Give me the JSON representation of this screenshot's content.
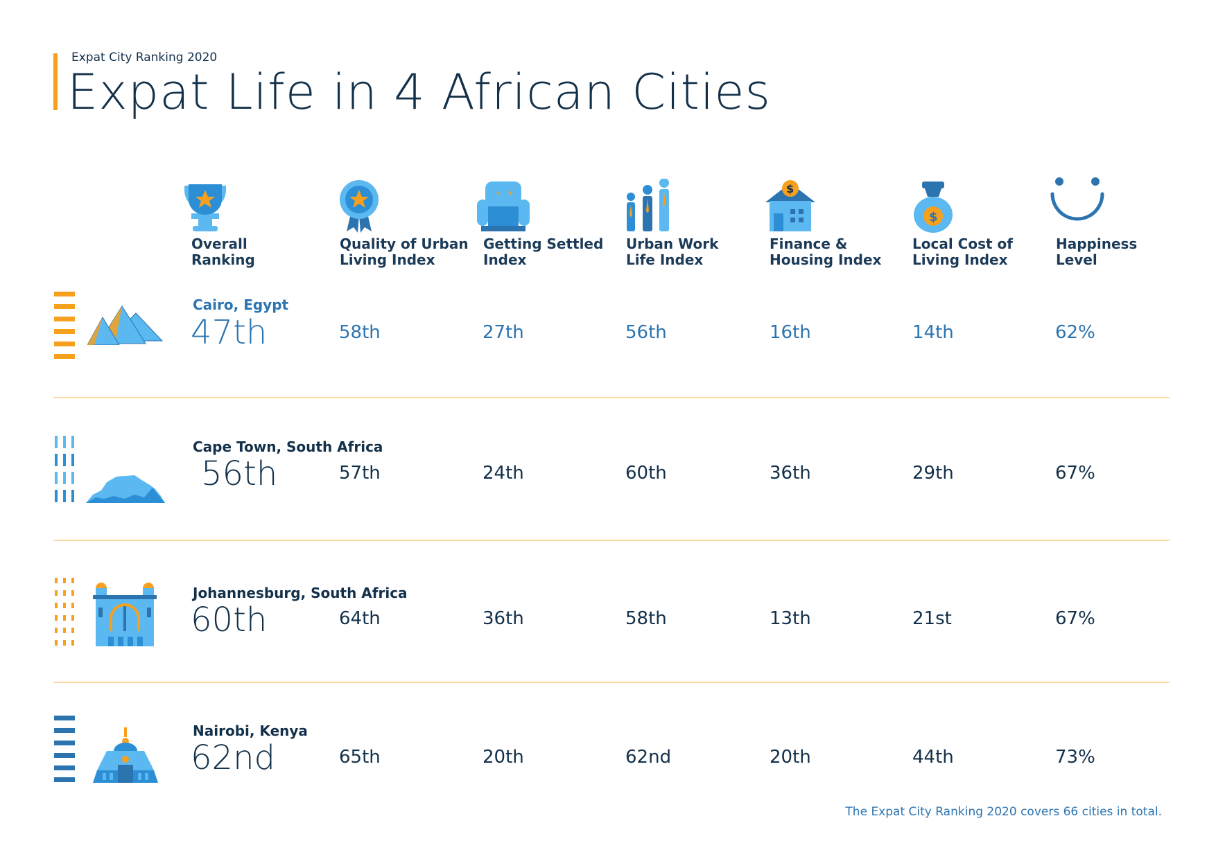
{
  "header": {
    "subtitle": "Expat City Ranking 2020",
    "title": "Expat Life in 4 African Cities"
  },
  "columns": [
    {
      "icon": "trophy-icon",
      "line1": "Overall",
      "line2": "Ranking"
    },
    {
      "icon": "award-badge-icon",
      "line1": "Quality of Urban",
      "line2": "Living Index"
    },
    {
      "icon": "armchair-icon",
      "line1": "Getting Settled",
      "line2": "Index"
    },
    {
      "icon": "workers-icon",
      "line1": "Urban Work",
      "line2": "Life Index"
    },
    {
      "icon": "house-money-icon",
      "line1": "Finance &",
      "line2": "Housing Index"
    },
    {
      "icon": "money-bag-icon",
      "line1": "Local Cost of",
      "line2": "Living Index"
    },
    {
      "icon": "smiley-icon",
      "line1": "Happiness",
      "line2": "Level"
    }
  ],
  "rows": [
    {
      "city": "Cairo, Egypt",
      "overall": "47th",
      "values": [
        "58th",
        "27th",
        "56th",
        "16th",
        "14th",
        "62%"
      ],
      "landmark": "pyramids-icon"
    },
    {
      "city": "Cape Town, South Africa",
      "overall": "56th",
      "values": [
        "57th",
        "24th",
        "60th",
        "36th",
        "29th",
        "67%"
      ],
      "landmark": "table-mountain-icon"
    },
    {
      "city": "Johannesburg, South Africa",
      "overall": "60th",
      "values": [
        "64th",
        "36th",
        "58th",
        "13th",
        "21st",
        "67%"
      ],
      "landmark": "building-arch-icon"
    },
    {
      "city": "Nairobi, Kenya",
      "overall": "62nd",
      "values": [
        "65th",
        "20th",
        "62nd",
        "20th",
        "44th",
        "73%"
      ],
      "landmark": "kicc-building-icon"
    }
  ],
  "footnote": "The Expat City Ranking 2020 covers 66 cities in total.",
  "colors": {
    "accent": "#f7a01e",
    "primary": "#2c74b0",
    "light_blue": "#5bb8f0",
    "navy": "#13304a",
    "separator": "#fdd9a3"
  }
}
